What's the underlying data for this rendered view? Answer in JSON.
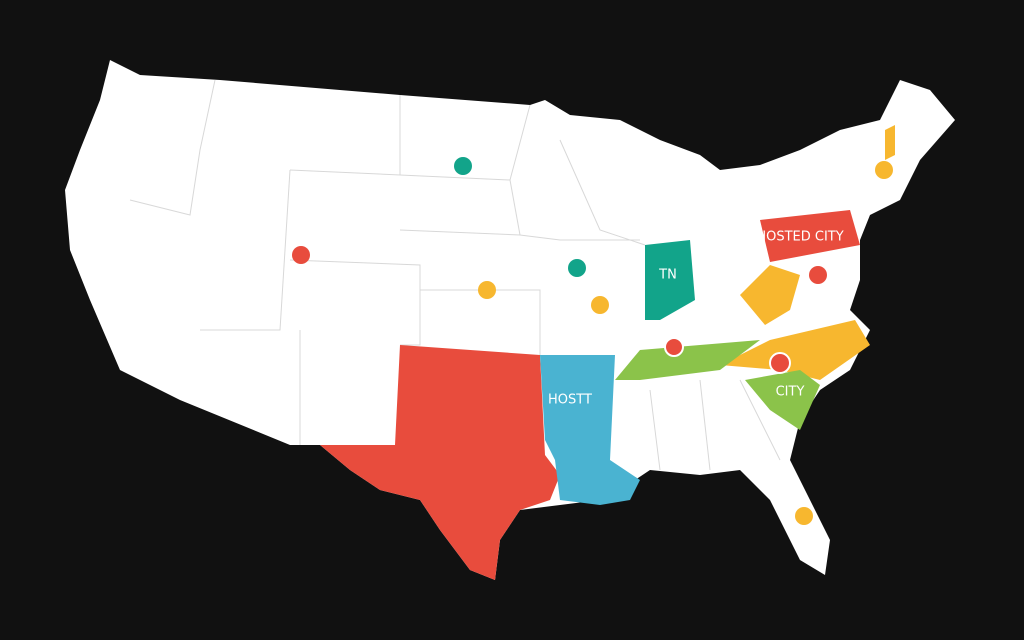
{
  "map": {
    "labels": {
      "hosted_city": "HOSTED CITY",
      "host": "HOSTT",
      "tn": "TN",
      "city": "CITY"
    }
  }
}
